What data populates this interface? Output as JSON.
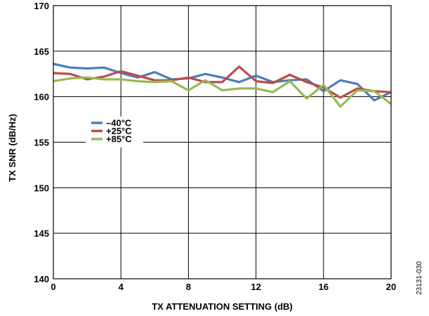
{
  "chart_data": {
    "type": "line",
    "title": "",
    "xlabel": "TX ATTENUATION SETTING (dB)",
    "ylabel": "TX SNR (dB/Hz)",
    "xlim": [
      0,
      20
    ],
    "ylim": [
      140,
      170
    ],
    "x_ticks": [
      0,
      4,
      8,
      12,
      16,
      20
    ],
    "y_ticks": [
      140,
      145,
      150,
      155,
      160,
      165,
      170
    ],
    "grid": true,
    "legend_position": "left-middle",
    "x": [
      0,
      1,
      2,
      3,
      4,
      5,
      6,
      7,
      8,
      9,
      10,
      11,
      12,
      13,
      14,
      15,
      16,
      17,
      18,
      19,
      20
    ],
    "series": [
      {
        "name": "–40°C",
        "color": "#4a7ebb",
        "values": [
          163.6,
          163.2,
          163.1,
          163.2,
          162.6,
          162.1,
          162.7,
          161.9,
          162.0,
          162.5,
          162.1,
          161.6,
          162.3,
          161.6,
          161.8,
          161.9,
          160.6,
          161.8,
          161.4,
          159.6,
          160.5
        ]
      },
      {
        "name": "+25°C",
        "color": "#be4b48",
        "values": [
          162.6,
          162.5,
          161.9,
          162.2,
          162.8,
          162.3,
          161.8,
          161.8,
          162.1,
          161.6,
          161.6,
          163.3,
          161.7,
          161.5,
          162.4,
          161.6,
          161.0,
          159.9,
          160.9,
          160.6,
          160.5
        ]
      },
      {
        "name": "+85°C",
        "color": "#98b954",
        "values": [
          161.7,
          162.0,
          162.1,
          161.9,
          161.9,
          161.7,
          161.6,
          161.7,
          160.7,
          161.8,
          160.7,
          160.9,
          160.9,
          160.5,
          161.7,
          159.8,
          161.3,
          158.9,
          160.7,
          160.6,
          159.2
        ]
      }
    ]
  },
  "figure_id": "23131-030"
}
